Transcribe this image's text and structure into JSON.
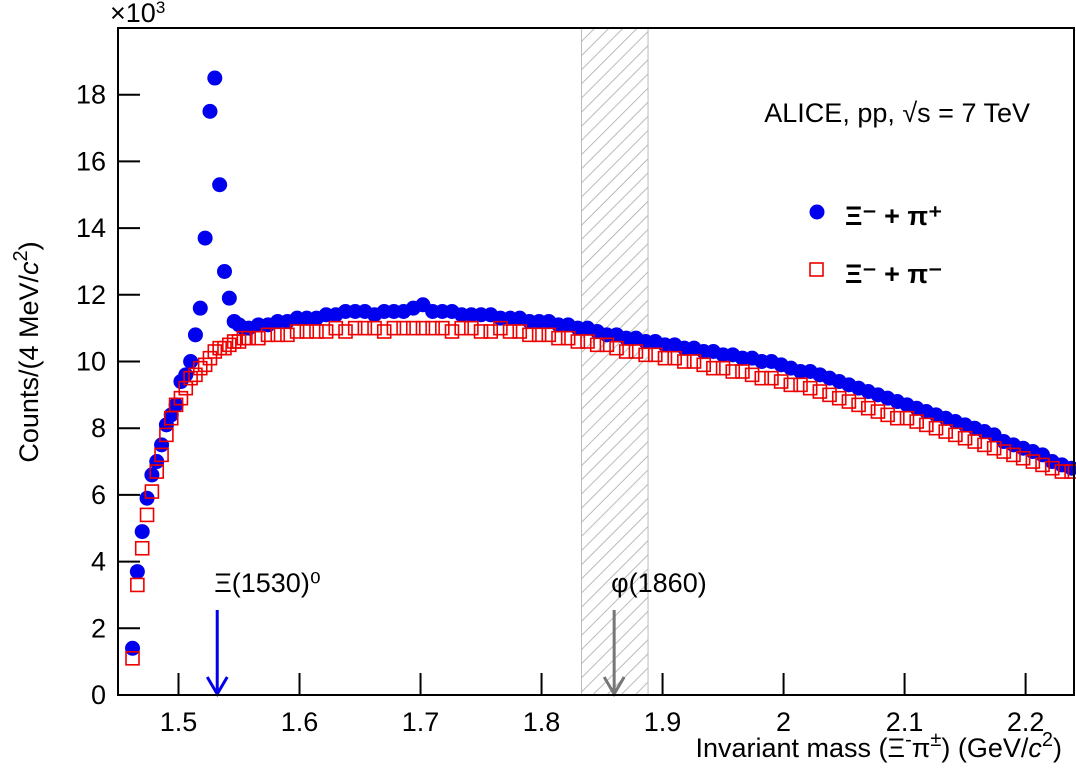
{
  "chart_data": {
    "type": "scatter",
    "multiplier": {
      "base": "×10",
      "exp": "3"
    },
    "ylabel_parts": [
      "Counts/(4 MeV/",
      "c",
      "2",
      ")"
    ],
    "xlabel_parts": [
      "Invariant mass (Ξ",
      "-",
      "π",
      "±",
      ") (GeV/",
      "c",
      "2",
      ")"
    ],
    "annotation": "ALICE, pp,  √s = 7 TeV",
    "markers": [
      {
        "label": "Ξ(1530)⁰",
        "x": 1.532,
        "color": "#0000ee"
      },
      {
        "label": "φ(1860)",
        "x": 1.86,
        "color": "#777777"
      }
    ],
    "band": {
      "x": [
        1.833,
        1.888
      ],
      "color": "#aaaaaa"
    },
    "xlim": [
      1.45,
      2.24
    ],
    "ylim": [
      0,
      20
    ],
    "xticks": [
      1.5,
      1.6,
      1.7,
      1.8,
      1.9,
      2,
      2.1,
      2.2
    ],
    "yticks": [
      0,
      2,
      4,
      6,
      8,
      10,
      12,
      14,
      16,
      18
    ],
    "x": [
      1.462,
      1.466,
      1.47,
      1.474,
      1.478,
      1.482,
      1.486,
      1.49,
      1.494,
      1.498,
      1.502,
      1.506,
      1.51,
      1.514,
      1.518,
      1.522,
      1.526,
      1.53,
      1.534,
      1.538,
      1.542,
      1.546,
      1.55,
      1.554,
      1.558,
      1.566,
      1.574,
      1.582,
      1.59,
      1.598,
      1.606,
      1.614,
      1.622,
      1.63,
      1.638,
      1.646,
      1.654,
      1.662,
      1.67,
      1.678,
      1.686,
      1.694,
      1.702,
      1.71,
      1.718,
      1.726,
      1.734,
      1.742,
      1.75,
      1.758,
      1.766,
      1.774,
      1.782,
      1.79,
      1.798,
      1.806,
      1.814,
      1.822,
      1.83,
      1.838,
      1.846,
      1.854,
      1.862,
      1.87,
      1.878,
      1.886,
      1.894,
      1.902,
      1.91,
      1.918,
      1.926,
      1.934,
      1.942,
      1.95,
      1.958,
      1.966,
      1.974,
      1.982,
      1.99,
      1.998,
      2.006,
      2.014,
      2.022,
      2.03,
      2.038,
      2.046,
      2.054,
      2.062,
      2.07,
      2.078,
      2.086,
      2.094,
      2.102,
      2.11,
      2.118,
      2.126,
      2.134,
      2.142,
      2.15,
      2.158,
      2.166,
      2.174,
      2.182,
      2.19,
      2.198,
      2.206,
      2.214,
      2.222,
      2.23,
      2.238
    ],
    "series": [
      {
        "name": "Ξ⁻ + π⁺",
        "color": "#0000ee",
        "marker": "filled-circle",
        "values": [
          1.4,
          3.7,
          4.9,
          5.9,
          6.6,
          7.0,
          7.5,
          8.1,
          8.4,
          8.7,
          9.4,
          9.6,
          10.0,
          10.8,
          11.6,
          13.7,
          17.5,
          18.5,
          15.3,
          12.7,
          11.9,
          11.2,
          11.1,
          11.0,
          11.0,
          11.1,
          11.1,
          11.2,
          11.2,
          11.3,
          11.3,
          11.3,
          11.4,
          11.4,
          11.5,
          11.5,
          11.5,
          11.4,
          11.5,
          11.5,
          11.5,
          11.6,
          11.7,
          11.5,
          11.5,
          11.5,
          11.4,
          11.4,
          11.4,
          11.4,
          11.3,
          11.3,
          11.3,
          11.2,
          11.2,
          11.2,
          11.1,
          11.1,
          11.0,
          11.0,
          10.9,
          10.8,
          10.8,
          10.7,
          10.7,
          10.6,
          10.6,
          10.5,
          10.5,
          10.4,
          10.4,
          10.3,
          10.3,
          10.2,
          10.2,
          10.1,
          10.1,
          10.0,
          10.0,
          9.9,
          9.8,
          9.7,
          9.7,
          9.6,
          9.5,
          9.4,
          9.3,
          9.2,
          9.1,
          9.0,
          8.9,
          8.8,
          8.7,
          8.6,
          8.5,
          8.4,
          8.3,
          8.2,
          8.1,
          8.0,
          7.9,
          7.8,
          7.6,
          7.5,
          7.4,
          7.3,
          7.2,
          7.0,
          6.9,
          6.8
        ]
      },
      {
        "name": "Ξ⁻ + π⁻",
        "color": "#ee0000",
        "marker": "open-square",
        "values": [
          1.1,
          3.3,
          4.4,
          5.4,
          6.1,
          6.7,
          7.2,
          7.8,
          8.3,
          8.7,
          8.9,
          9.2,
          9.5,
          9.6,
          9.8,
          9.9,
          10.1,
          10.3,
          10.4,
          10.4,
          10.5,
          10.6,
          10.6,
          10.7,
          10.7,
          10.7,
          10.8,
          10.8,
          10.8,
          10.9,
          10.9,
          10.9,
          10.9,
          11.0,
          10.9,
          11.0,
          11.0,
          11.0,
          10.9,
          11.0,
          11.0,
          11.0,
          11.0,
          11.0,
          11.0,
          10.9,
          11.0,
          11.0,
          10.9,
          10.9,
          11.0,
          10.9,
          10.9,
          10.8,
          10.8,
          10.8,
          10.7,
          10.7,
          10.6,
          10.6,
          10.5,
          10.5,
          10.4,
          10.3,
          10.3,
          10.2,
          10.2,
          10.1,
          10.1,
          10.0,
          10.0,
          9.9,
          9.8,
          9.8,
          9.7,
          9.7,
          9.6,
          9.5,
          9.5,
          9.4,
          9.3,
          9.3,
          9.2,
          9.1,
          9.0,
          8.9,
          8.8,
          8.7,
          8.6,
          8.5,
          8.4,
          8.3,
          8.3,
          8.2,
          8.1,
          8.0,
          7.9,
          7.8,
          7.7,
          7.6,
          7.5,
          7.4,
          7.3,
          7.2,
          7.1,
          7.0,
          6.9,
          6.8,
          6.7,
          6.7
        ]
      }
    ]
  }
}
